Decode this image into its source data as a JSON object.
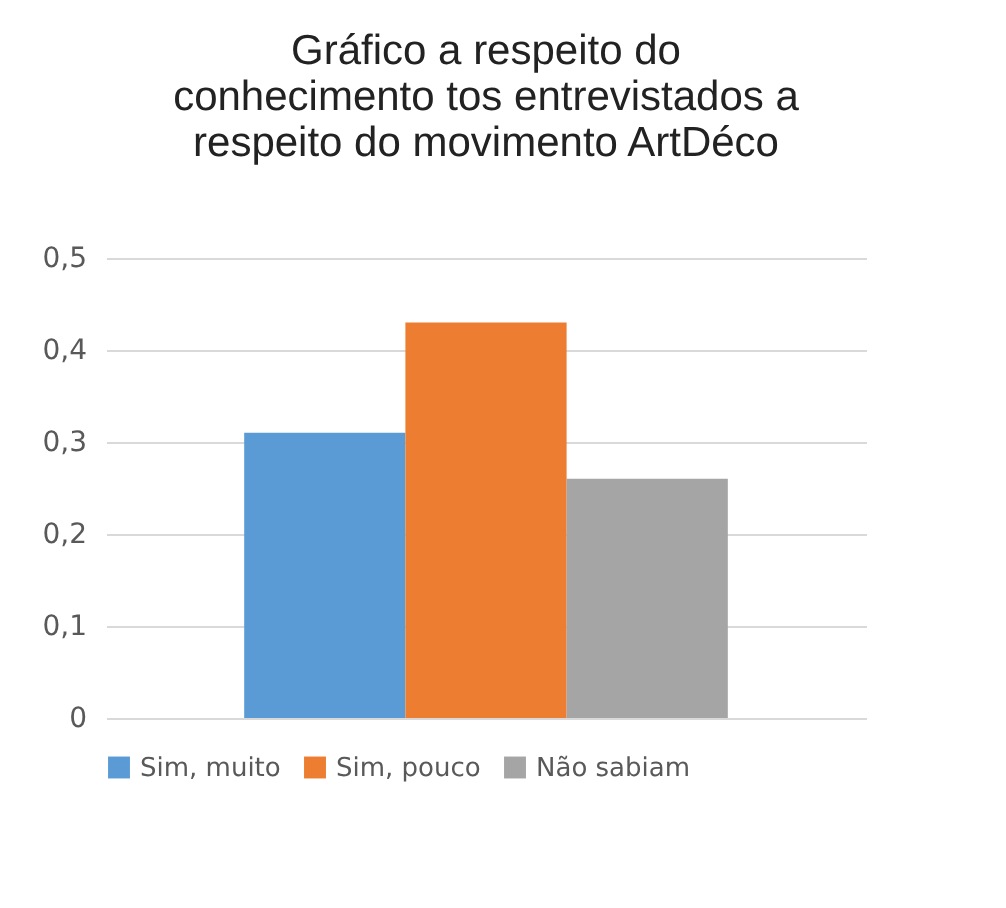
{
  "chart_data": {
    "type": "bar",
    "title": "Gráfico a respeito do conhecimento tos entrevistados a respeito do movimento ArtDéco",
    "categories": [
      null
    ],
    "series": [
      {
        "name": "Sim, muito",
        "color": "#5b9bd5",
        "values": [
          0.31
        ]
      },
      {
        "name": "Sim, pouco",
        "color": "#ed7d31",
        "values": [
          0.43
        ]
      },
      {
        "name": "Não sabiam",
        "color": "#a5a5a5",
        "values": [
          0.26
        ]
      }
    ],
    "ylim": [
      0,
      0.5
    ],
    "yticks": [
      {
        "value": 0,
        "label": "0"
      },
      {
        "value": 0.1,
        "label": "0,1"
      },
      {
        "value": 0.2,
        "label": "0,2"
      },
      {
        "value": 0.3,
        "label": "0,3"
      },
      {
        "value": 0.4,
        "label": "0,4"
      },
      {
        "value": 0.5,
        "label": "0,5"
      }
    ],
    "grid": "y",
    "legend": "bottom",
    "tick_labels": "y"
  }
}
